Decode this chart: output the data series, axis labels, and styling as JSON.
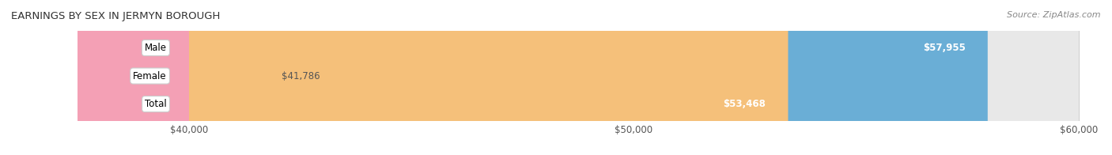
{
  "title": "EARNINGS BY SEX IN JERMYN BOROUGH",
  "source": "Source: ZipAtlas.com",
  "categories": [
    "Male",
    "Female",
    "Total"
  ],
  "values": [
    57955,
    41786,
    53468
  ],
  "bar_colors": [
    "#6aaed6",
    "#f4a0b5",
    "#f5c07a"
  ],
  "track_color": "#e8e8e8",
  "label_bg_color": "#ffffff",
  "x_min": 40000,
  "x_max": 60000,
  "x_ticks": [
    40000,
    50000,
    60000
  ],
  "x_tick_labels": [
    "$40,000",
    "$50,000",
    "$60,000"
  ],
  "value_labels": [
    "$57,955",
    "$41,786",
    "$53,468"
  ],
  "bar_height": 0.55,
  "title_fontsize": 9.5,
  "label_fontsize": 8.5,
  "value_fontsize": 8.5,
  "tick_fontsize": 8.5,
  "source_fontsize": 8.0,
  "background_color": "#ffffff"
}
